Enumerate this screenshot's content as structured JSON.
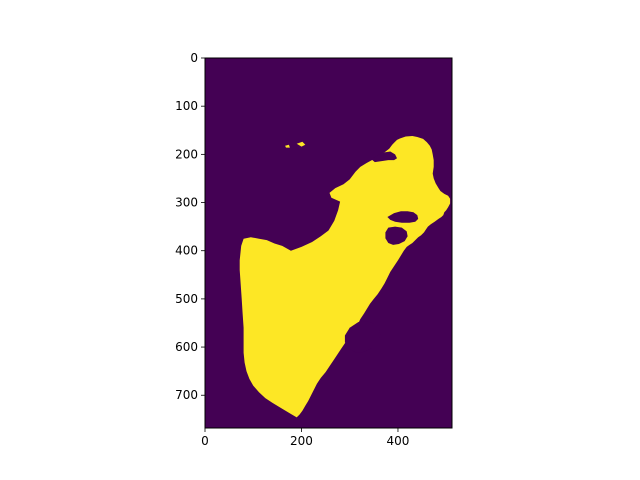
{
  "chart_data": {
    "type": "heatmap",
    "title": "",
    "xlabel": "",
    "ylabel": "",
    "xlim": [
      0,
      512
    ],
    "ylim": [
      768,
      0
    ],
    "x_ticks": [
      0,
      200,
      400
    ],
    "y_ticks": [
      0,
      100,
      200,
      300,
      400,
      500,
      600,
      700
    ],
    "x_tick_labels": [
      "0",
      "200",
      "400"
    ],
    "y_tick_labels": [
      "0",
      "100",
      "200",
      "300",
      "400",
      "500",
      "600",
      "700"
    ],
    "colormap": "viridis",
    "values": [
      0,
      1
    ],
    "colors": {
      "background_value_0": "#440154",
      "foreground_value_1": "#fde725"
    },
    "grid": false,
    "legend": "none",
    "regions": [
      {
        "name": "face-silhouette",
        "value": 1,
        "outline": [
          [
            75,
            390
          ],
          [
            80,
            375
          ],
          [
            95,
            372
          ],
          [
            112,
            375
          ],
          [
            128,
            378
          ],
          [
            144,
            385
          ],
          [
            160,
            390
          ],
          [
            178,
            400
          ],
          [
            200,
            392
          ],
          [
            222,
            382
          ],
          [
            240,
            370
          ],
          [
            256,
            358
          ],
          [
            268,
            338
          ],
          [
            276,
            316
          ],
          [
            280,
            298
          ],
          [
            262,
            290
          ],
          [
            258,
            280
          ],
          [
            270,
            270
          ],
          [
            287,
            262
          ],
          [
            300,
            252
          ],
          [
            312,
            236
          ],
          [
            322,
            226
          ],
          [
            335,
            218
          ],
          [
            346,
            212
          ],
          [
            358,
            205
          ],
          [
            372,
            196
          ],
          [
            382,
            188
          ],
          [
            388,
            180
          ],
          [
            392,
            176
          ],
          [
            398,
            170
          ],
          [
            404,
            167
          ],
          [
            416,
            163
          ],
          [
            430,
            162
          ],
          [
            440,
            164
          ],
          [
            452,
            168
          ],
          [
            460,
            175
          ],
          [
            466,
            182
          ],
          [
            470,
            190
          ],
          [
            472,
            200
          ],
          [
            474,
            212
          ],
          [
            474,
            226
          ],
          [
            472,
            240
          ],
          [
            474,
            250
          ],
          [
            478,
            260
          ],
          [
            484,
            270
          ],
          [
            488,
            276
          ],
          [
            496,
            282
          ],
          [
            504,
            286
          ],
          [
            508,
            292
          ],
          [
            508,
            302
          ],
          [
            504,
            310
          ],
          [
            500,
            316
          ],
          [
            496,
            320
          ],
          [
            494,
            326
          ],
          [
            490,
            330
          ],
          [
            484,
            334
          ],
          [
            476,
            340
          ],
          [
            468,
            345
          ],
          [
            462,
            350
          ],
          [
            458,
            356
          ],
          [
            454,
            362
          ],
          [
            448,
            368
          ],
          [
            442,
            372
          ],
          [
            436,
            378
          ],
          [
            430,
            384
          ],
          [
            424,
            388
          ],
          [
            418,
            392
          ],
          [
            412,
            400
          ],
          [
            406,
            410
          ],
          [
            400,
            420
          ],
          [
            392,
            432
          ],
          [
            384,
            444
          ],
          [
            378,
            456
          ],
          [
            372,
            468
          ],
          [
            366,
            478
          ],
          [
            358,
            490
          ],
          [
            350,
            500
          ],
          [
            342,
            510
          ],
          [
            336,
            520
          ],
          [
            330,
            530
          ],
          [
            322,
            542
          ],
          [
            316,
            555
          ],
          [
            308,
            568
          ],
          [
            300,
            580
          ],
          [
            290,
            592
          ],
          [
            282,
            604
          ],
          [
            274,
            616
          ],
          [
            266,
            628
          ],
          [
            258,
            640
          ],
          [
            250,
            652
          ],
          [
            240,
            664
          ],
          [
            232,
            676
          ],
          [
            226,
            688
          ],
          [
            220,
            700
          ],
          [
            214,
            712
          ],
          [
            208,
            722
          ],
          [
            202,
            732
          ],
          [
            196,
            740
          ],
          [
            190,
            746
          ],
          [
            180,
            740
          ],
          [
            160,
            728
          ],
          [
            140,
            716
          ],
          [
            125,
            706
          ],
          [
            112,
            694
          ],
          [
            100,
            680
          ],
          [
            92,
            666
          ],
          [
            86,
            650
          ],
          [
            82,
            632
          ],
          [
            80,
            612
          ],
          [
            80,
            590
          ],
          [
            80,
            560
          ],
          [
            78,
            530
          ],
          [
            76,
            500
          ],
          [
            74,
            470
          ],
          [
            72,
            440
          ],
          [
            72,
            420
          ]
        ]
      }
    ],
    "cutouts": [
      {
        "name": "eye",
        "value": 0,
        "outline": [
          [
            345,
            210
          ],
          [
            358,
            202
          ],
          [
            372,
            196
          ],
          [
            384,
            194
          ],
          [
            394,
            200
          ],
          [
            398,
            208
          ],
          [
            392,
            212
          ],
          [
            380,
            212
          ],
          [
            366,
            214
          ],
          [
            352,
            216
          ]
        ]
      },
      {
        "name": "mouth-shadow",
        "value": 0,
        "outline": [
          [
            378,
            330
          ],
          [
            392,
            322
          ],
          [
            406,
            318
          ],
          [
            420,
            318
          ],
          [
            432,
            320
          ],
          [
            440,
            326
          ],
          [
            442,
            334
          ],
          [
            436,
            340
          ],
          [
            424,
            342
          ],
          [
            408,
            342
          ],
          [
            394,
            340
          ],
          [
            384,
            336
          ]
        ]
      },
      {
        "name": "lower-jaw-shadow",
        "value": 0,
        "outline": [
          [
            380,
            352
          ],
          [
            394,
            350
          ],
          [
            408,
            352
          ],
          [
            418,
            360
          ],
          [
            420,
            370
          ],
          [
            414,
            380
          ],
          [
            402,
            386
          ],
          [
            390,
            388
          ],
          [
            380,
            384
          ],
          [
            374,
            374
          ],
          [
            374,
            362
          ]
        ]
      },
      {
        "name": "beard-shadow",
        "value": 0,
        "outline": [
          [
            300,
            560
          ],
          [
            318,
            548
          ],
          [
            336,
            546
          ],
          [
            350,
            552
          ],
          [
            360,
            562
          ],
          [
            364,
            576
          ],
          [
            358,
            590
          ],
          [
            346,
            602
          ],
          [
            330,
            610
          ],
          [
            314,
            612
          ],
          [
            300,
            604
          ],
          [
            290,
            590
          ],
          [
            290,
            576
          ]
        ]
      }
    ],
    "specks": [
      {
        "name": "speck-1",
        "value": 1,
        "outline": [
          [
            190,
            178
          ],
          [
            202,
            174
          ],
          [
            208,
            180
          ],
          [
            200,
            184
          ]
        ]
      },
      {
        "name": "speck-2",
        "value": 1,
        "outline": [
          [
            166,
            182
          ],
          [
            174,
            180
          ],
          [
            176,
            186
          ],
          [
            168,
            186
          ]
        ]
      },
      {
        "name": "speck-3",
        "value": 1,
        "outline": [
          [
            134,
            690
          ],
          [
            140,
            688
          ],
          [
            142,
            696
          ],
          [
            136,
            696
          ]
        ]
      }
    ]
  }
}
